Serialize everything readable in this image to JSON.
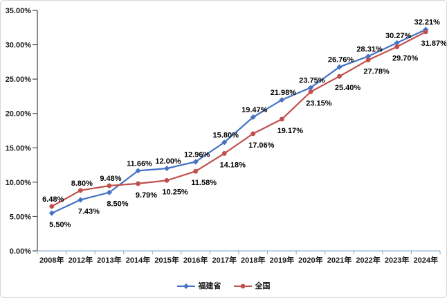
{
  "chart_data": {
    "type": "line",
    "categories": [
      "2008年",
      "2012年",
      "2013年",
      "2014年",
      "2015年",
      "2016年",
      "2017年",
      "2018年",
      "2019年",
      "2020年",
      "2021年",
      "2022年",
      "2023年",
      "2024年"
    ],
    "series": [
      {
        "name": "福建省",
        "color": "#4472C4",
        "marker": "diamond",
        "values": [
          5.5,
          7.43,
          8.5,
          11.66,
          12.0,
          12.96,
          15.8,
          19.47,
          21.98,
          23.75,
          26.76,
          28.31,
          30.27,
          32.21
        ]
      },
      {
        "name": "全国",
        "color": "#C0504D",
        "marker": "circle",
        "values": [
          6.48,
          8.8,
          9.48,
          9.79,
          10.25,
          11.58,
          14.18,
          17.06,
          19.17,
          23.15,
          25.4,
          27.78,
          29.7,
          31.87
        ]
      }
    ],
    "title": "",
    "xlabel": "",
    "ylabel": "",
    "ylim": [
      0,
      35
    ],
    "y_tick_step": 5,
    "y_ticks": [
      "0.00%",
      "5.00%",
      "10.00%",
      "15.00%",
      "20.00%",
      "25.00%",
      "30.00%",
      "35.00%"
    ],
    "data_labels": true,
    "data_label_format": "0.00%",
    "grid": "off",
    "legend_position": "bottom-center"
  },
  "colors": {
    "y_axis": "#4a4a4a",
    "x_axis": "#95B3D7",
    "label_text": "#000000",
    "border": "#d6d6d6"
  }
}
